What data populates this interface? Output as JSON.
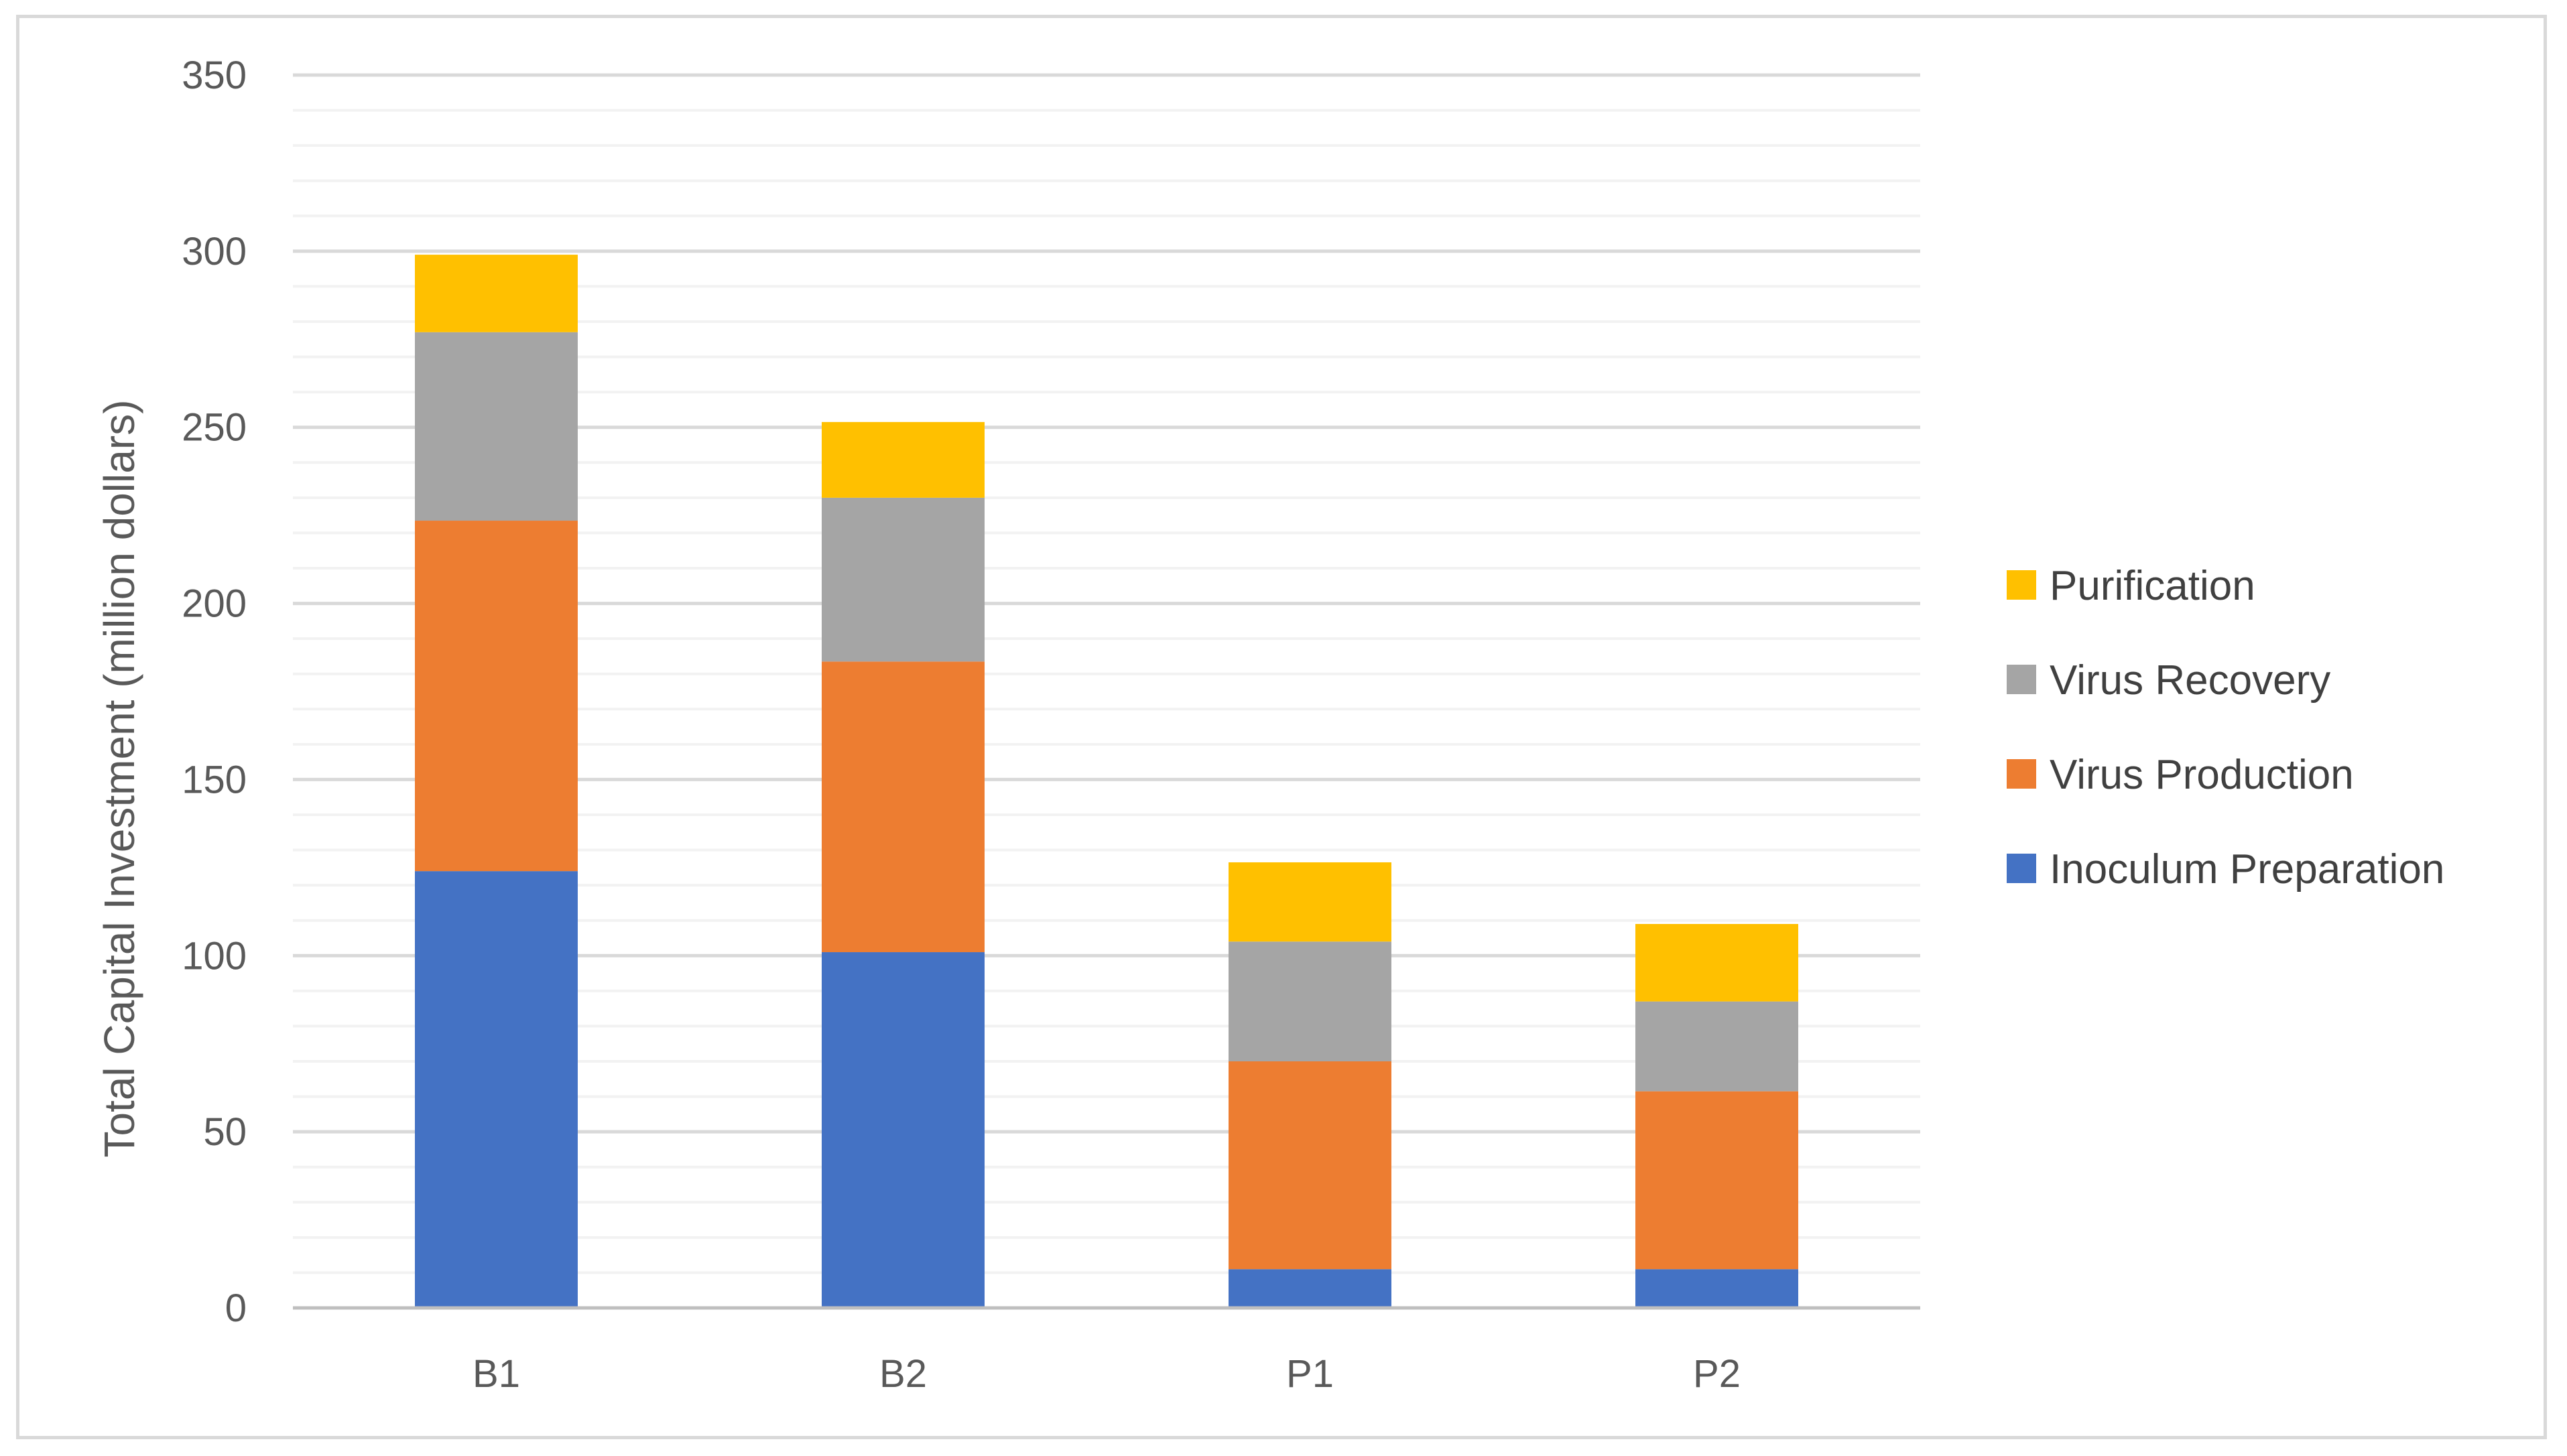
{
  "chart_data": {
    "type": "bar",
    "stacked": true,
    "categories": [
      "B1",
      "B2",
      "P1",
      "P2"
    ],
    "series": [
      {
        "name": "Inoculum Preparation",
        "color": "#4472c4",
        "values": [
          124,
          101,
          11,
          11
        ]
      },
      {
        "name": "Virus Production",
        "color": "#ed7d31",
        "values": [
          99.5,
          82.5,
          59,
          50.5
        ]
      },
      {
        "name": "Virus Recovery",
        "color": "#a5a5a5",
        "values": [
          53.5,
          46.5,
          34,
          25.5
        ]
      },
      {
        "name": "Purification",
        "color": "#ffc000",
        "values": [
          22,
          21.5,
          22.5,
          22
        ]
      }
    ],
    "ylabel": "Total Capital Investment (million dollars)",
    "ylim": [
      0,
      350
    ],
    "yticks": [
      0,
      50,
      100,
      150,
      200,
      250,
      300,
      350
    ],
    "minor_gridlines_step": 10,
    "grid": true,
    "legend_position": "right"
  }
}
